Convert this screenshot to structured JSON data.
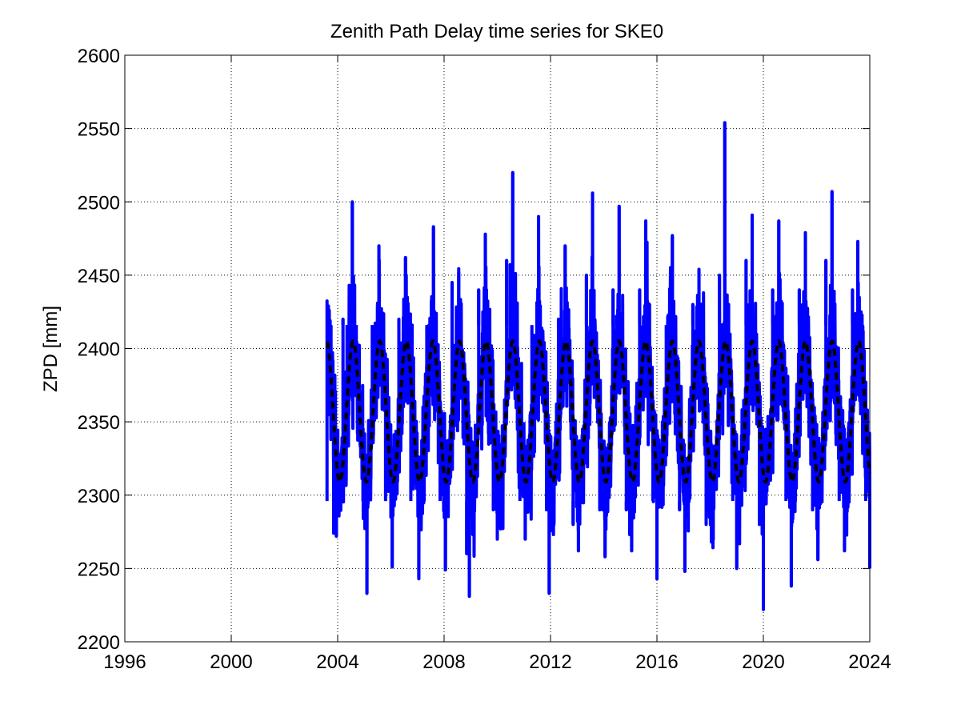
{
  "chart_data": {
    "type": "line",
    "title": "Zenith Path Delay time series for SKE0",
    "xlabel": "",
    "ylabel": "ZPD [mm]",
    "xlim": [
      1996,
      2024
    ],
    "ylim": [
      2200,
      2600
    ],
    "xticks": [
      1996,
      2000,
      2004,
      2008,
      2012,
      2016,
      2020,
      2024
    ],
    "yticks": [
      2200,
      2250,
      2300,
      2350,
      2400,
      2450,
      2500,
      2550,
      2600
    ],
    "xtick_labels": [
      "1996",
      "2000",
      "2004",
      "2008",
      "2012",
      "2016",
      "2020",
      "2024"
    ],
    "ytick_labels": [
      "2200",
      "2250",
      "2300",
      "2350",
      "2400",
      "2450",
      "2500",
      "2550",
      "2600"
    ],
    "grid": true,
    "legend": "none",
    "series": [
      {
        "style": "solid",
        "color": "#0000ff",
        "description_level": "observed ZPD",
        "x_start": 2003.6,
        "x_end": 2024.0,
        "annual_mean": 2356,
        "annual_amplitude": 47,
        "peak_phase": 0.58,
        "points": [
          [
            2003.6,
            2346
          ],
          [
            2003.65,
            2429
          ],
          [
            2003.75,
            2405
          ],
          [
            2003.85,
            2274
          ],
          [
            2003.95,
            2272
          ],
          [
            2004.1,
            2292
          ],
          [
            2004.2,
            2420
          ],
          [
            2004.35,
            2380
          ],
          [
            2004.55,
            2500
          ],
          [
            2004.7,
            2385
          ],
          [
            2004.95,
            2300
          ],
          [
            2005.1,
            2233
          ],
          [
            2005.3,
            2360
          ],
          [
            2005.55,
            2470
          ],
          [
            2005.8,
            2350
          ],
          [
            2006.05,
            2251
          ],
          [
            2006.3,
            2420
          ],
          [
            2006.55,
            2462
          ],
          [
            2006.75,
            2330
          ],
          [
            2007.05,
            2243
          ],
          [
            2007.35,
            2410
          ],
          [
            2007.6,
            2483
          ],
          [
            2007.85,
            2330
          ],
          [
            2008.05,
            2249
          ],
          [
            2008.3,
            2445
          ],
          [
            2008.55,
            2452
          ],
          [
            2008.85,
            2260
          ],
          [
            2008.95,
            2231
          ],
          [
            2009.3,
            2440
          ],
          [
            2009.55,
            2478
          ],
          [
            2009.85,
            2290
          ],
          [
            2010.0,
            2270
          ],
          [
            2010.35,
            2460
          ],
          [
            2010.58,
            2520
          ],
          [
            2010.85,
            2300
          ],
          [
            2011.05,
            2270
          ],
          [
            2011.3,
            2410
          ],
          [
            2011.55,
            2490
          ],
          [
            2011.85,
            2290
          ],
          [
            2011.95,
            2233
          ],
          [
            2012.3,
            2420
          ],
          [
            2012.55,
            2470
          ],
          [
            2012.85,
            2280
          ],
          [
            2013.05,
            2262
          ],
          [
            2013.35,
            2450
          ],
          [
            2013.58,
            2506
          ],
          [
            2013.85,
            2290
          ],
          [
            2014.05,
            2258
          ],
          [
            2014.35,
            2440
          ],
          [
            2014.58,
            2497
          ],
          [
            2014.85,
            2290
          ],
          [
            2015.05,
            2262
          ],
          [
            2015.35,
            2440
          ],
          [
            2015.58,
            2487
          ],
          [
            2015.85,
            2300
          ],
          [
            2016.0,
            2243
          ],
          [
            2016.35,
            2410
          ],
          [
            2016.58,
            2477
          ],
          [
            2016.85,
            2290
          ],
          [
            2017.05,
            2248
          ],
          [
            2017.35,
            2430
          ],
          [
            2017.58,
            2454
          ],
          [
            2017.85,
            2280
          ],
          [
            2018.05,
            2268
          ],
          [
            2018.35,
            2450
          ],
          [
            2018.55,
            2554
          ],
          [
            2018.85,
            2300
          ],
          [
            2019.0,
            2250
          ],
          [
            2019.35,
            2460
          ],
          [
            2019.58,
            2491
          ],
          [
            2019.85,
            2280
          ],
          [
            2020.0,
            2222
          ],
          [
            2020.35,
            2440
          ],
          [
            2020.58,
            2487
          ],
          [
            2020.85,
            2300
          ],
          [
            2021.05,
            2238
          ],
          [
            2021.35,
            2440
          ],
          [
            2021.58,
            2479
          ],
          [
            2021.85,
            2290
          ],
          [
            2022.05,
            2256
          ],
          [
            2022.35,
            2460
          ],
          [
            2022.58,
            2507
          ],
          [
            2022.85,
            2300
          ],
          [
            2023.05,
            2262
          ],
          [
            2023.35,
            2440
          ],
          [
            2023.55,
            2473
          ],
          [
            2023.85,
            2300
          ],
          [
            2024.0,
            2250
          ]
        ]
      },
      {
        "style": "dashed",
        "color": "#000000",
        "description_level": "annual model fit",
        "x_start": 2003.6,
        "x_end": 2024.0,
        "mean": 2357,
        "amplitude": 48,
        "peak_phase": 0.58
      }
    ]
  }
}
